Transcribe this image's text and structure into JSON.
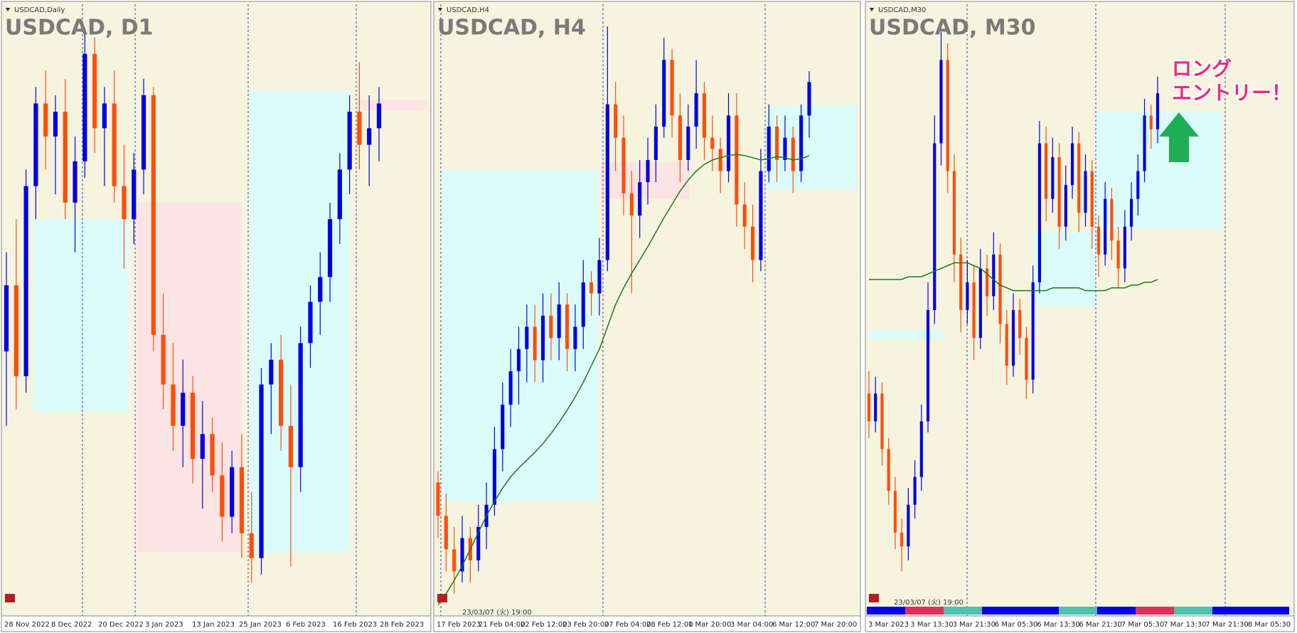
{
  "chart_data": [
    {
      "type": "candlestick",
      "symbol_label": "USDCAD,Daily",
      "title": "USDCAD, D1",
      "up_color": "#0000e6",
      "down_color": "#ff4d0a",
      "ylim": [
        1.318,
        1.392
      ],
      "x_labels": [
        "28 Nov 2022",
        "8 Dec 2022",
        "20 Dec 2022",
        "3 Jan 2023",
        "13 Jan 2023",
        "25 Jan 2023",
        "6 Feb 2023",
        "16 Feb 2023",
        "28 Feb 2023"
      ],
      "ohlc": [
        [
          1.35,
          1.362,
          1.341,
          1.358
        ],
        [
          1.358,
          1.366,
          1.343,
          1.347
        ],
        [
          1.347,
          1.372,
          1.345,
          1.37
        ],
        [
          1.37,
          1.382,
          1.366,
          1.38
        ],
        [
          1.38,
          1.384,
          1.372,
          1.376
        ],
        [
          1.376,
          1.381,
          1.369,
          1.379
        ],
        [
          1.379,
          1.383,
          1.366,
          1.368
        ],
        [
          1.368,
          1.376,
          1.362,
          1.373
        ],
        [
          1.373,
          1.389,
          1.371,
          1.386
        ],
        [
          1.386,
          1.388,
          1.374,
          1.377
        ],
        [
          1.377,
          1.382,
          1.37,
          1.38
        ],
        [
          1.38,
          1.384,
          1.368,
          1.37
        ],
        [
          1.37,
          1.375,
          1.36,
          1.366
        ],
        [
          1.366,
          1.374,
          1.363,
          1.372
        ],
        [
          1.372,
          1.383,
          1.369,
          1.381
        ],
        [
          1.381,
          1.382,
          1.35,
          1.352
        ],
        [
          1.352,
          1.357,
          1.343,
          1.346
        ],
        [
          1.346,
          1.351,
          1.338,
          1.341
        ],
        [
          1.341,
          1.349,
          1.336,
          1.345
        ],
        [
          1.345,
          1.347,
          1.334,
          1.337
        ],
        [
          1.337,
          1.344,
          1.331,
          1.34
        ],
        [
          1.34,
          1.342,
          1.333,
          1.335
        ],
        [
          1.335,
          1.339,
          1.327,
          1.33
        ],
        [
          1.33,
          1.338,
          1.328,
          1.336
        ],
        [
          1.336,
          1.34,
          1.325,
          1.328
        ],
        [
          1.328,
          1.333,
          1.322,
          1.325
        ],
        [
          1.325,
          1.348,
          1.323,
          1.346
        ],
        [
          1.346,
          1.351,
          1.34,
          1.349
        ],
        [
          1.349,
          1.352,
          1.338,
          1.341
        ],
        [
          1.341,
          1.346,
          1.324,
          1.336
        ],
        [
          1.336,
          1.353,
          1.333,
          1.351
        ],
        [
          1.351,
          1.358,
          1.348,
          1.356
        ],
        [
          1.356,
          1.362,
          1.352,
          1.359
        ],
        [
          1.359,
          1.368,
          1.356,
          1.366
        ],
        [
          1.366,
          1.374,
          1.363,
          1.372
        ],
        [
          1.372,
          1.381,
          1.369,
          1.379
        ],
        [
          1.379,
          1.385,
          1.372,
          1.375
        ],
        [
          1.375,
          1.381,
          1.37,
          1.377
        ],
        [
          1.377,
          1.382,
          1.373,
          1.38
        ]
      ]
    },
    {
      "type": "candlestick",
      "symbol_label": "USDCAD,H4",
      "title": "USDCAD, H4",
      "up_color": "#0000e6",
      "down_color": "#ff4d0a",
      "ylim": [
        1.333,
        1.388
      ],
      "cursor_time": "23/03/07 (火) 19:00",
      "x_labels": [
        "17 Feb 2023",
        "21 Feb 04:00",
        "22 Feb 12:00",
        "23 Feb 20:00",
        "27 Feb 04:00",
        "28 Feb 12:00",
        "1 Mar 20:00",
        "3 Mar 04:00",
        "6 Mar 12:00",
        "7 Mar 20:00"
      ],
      "ohlc": [
        [
          1.345,
          1.346,
          1.34,
          1.342
        ],
        [
          1.342,
          1.344,
          1.337,
          1.339
        ],
        [
          1.339,
          1.341,
          1.335,
          1.337
        ],
        [
          1.337,
          1.342,
          1.336,
          1.34
        ],
        [
          1.34,
          1.341,
          1.336,
          1.338
        ],
        [
          1.338,
          1.343,
          1.337,
          1.341
        ],
        [
          1.341,
          1.345,
          1.339,
          1.343
        ],
        [
          1.343,
          1.35,
          1.342,
          1.348
        ],
        [
          1.348,
          1.354,
          1.346,
          1.352
        ],
        [
          1.352,
          1.357,
          1.35,
          1.355
        ],
        [
          1.355,
          1.359,
          1.352,
          1.357
        ],
        [
          1.357,
          1.361,
          1.354,
          1.359
        ],
        [
          1.359,
          1.361,
          1.354,
          1.356
        ],
        [
          1.356,
          1.362,
          1.354,
          1.36
        ],
        [
          1.36,
          1.362,
          1.356,
          1.358
        ],
        [
          1.358,
          1.363,
          1.356,
          1.361
        ],
        [
          1.361,
          1.362,
          1.355,
          1.357
        ],
        [
          1.357,
          1.361,
          1.355,
          1.359
        ],
        [
          1.359,
          1.365,
          1.357,
          1.363
        ],
        [
          1.363,
          1.364,
          1.36,
          1.362
        ],
        [
          1.362,
          1.367,
          1.36,
          1.365
        ],
        [
          1.365,
          1.386,
          1.364,
          1.379
        ],
        [
          1.379,
          1.381,
          1.373,
          1.376
        ],
        [
          1.376,
          1.378,
          1.369,
          1.371
        ],
        [
          1.371,
          1.373,
          1.362,
          1.369
        ],
        [
          1.369,
          1.374,
          1.367,
          1.372
        ],
        [
          1.372,
          1.376,
          1.37,
          1.374
        ],
        [
          1.374,
          1.379,
          1.372,
          1.377
        ],
        [
          1.377,
          1.385,
          1.376,
          1.383
        ],
        [
          1.383,
          1.384,
          1.376,
          1.378
        ],
        [
          1.378,
          1.38,
          1.372,
          1.374
        ],
        [
          1.374,
          1.379,
          1.373,
          1.377
        ],
        [
          1.377,
          1.383,
          1.375,
          1.38
        ],
        [
          1.38,
          1.381,
          1.374,
          1.376
        ],
        [
          1.376,
          1.378,
          1.373,
          1.375
        ],
        [
          1.375,
          1.376,
          1.371,
          1.373
        ],
        [
          1.373,
          1.38,
          1.372,
          1.378
        ],
        [
          1.378,
          1.38,
          1.368,
          1.37
        ],
        [
          1.37,
          1.372,
          1.366,
          1.368
        ],
        [
          1.368,
          1.37,
          1.363,
          1.365
        ],
        [
          1.365,
          1.375,
          1.364,
          1.373
        ],
        [
          1.373,
          1.379,
          1.372,
          1.377
        ],
        [
          1.377,
          1.378,
          1.372,
          1.374
        ],
        [
          1.374,
          1.378,
          1.373,
          1.376
        ],
        [
          1.376,
          1.377,
          1.371,
          1.373
        ],
        [
          1.373,
          1.379,
          1.372,
          1.378
        ],
        [
          1.378,
          1.382,
          1.376,
          1.381
        ]
      ],
      "ma": {
        "color": "#1a7a1a",
        "values": [
          1.334,
          1.335,
          1.3362,
          1.3375,
          1.339,
          1.3405,
          1.342,
          1.3433,
          1.3445,
          1.3455,
          1.3463,
          1.347,
          1.3477,
          1.3485,
          1.3494,
          1.3504,
          1.3515,
          1.3527,
          1.354,
          1.3555,
          1.357,
          1.359,
          1.361,
          1.3625,
          1.3638,
          1.365,
          1.3662,
          1.3675,
          1.3688,
          1.37,
          1.3712,
          1.3722,
          1.373,
          1.3736,
          1.374,
          1.3742,
          1.3744,
          1.3745,
          1.3744,
          1.3742,
          1.374,
          1.3741,
          1.3743,
          1.3742,
          1.374,
          1.3741,
          1.3744
        ]
      }
    },
    {
      "type": "candlestick",
      "symbol_label": "USDCAD,M30",
      "title": "USDCAD, M30",
      "up_color": "#0000e6",
      "down_color": "#ff4d0a",
      "ylim": [
        1.362,
        1.384
      ],
      "cursor_time": "23/03/07 (火) 19:00",
      "annotation": [
        "ロング",
        "エントリー！"
      ],
      "x_labels": [
        "3 Mar 2023",
        "3 Mar 13:30",
        "3 Mar 21:30",
        "6 Mar 05:30",
        "6 Mar 13:30",
        "6 Mar 21:30",
        "7 Mar 05:30",
        "7 Mar 13:30",
        "7 Mar 21:30",
        "8 Mar 05:30"
      ],
      "ohlc": [
        [
          1.37,
          1.3708,
          1.3684,
          1.369
        ],
        [
          1.369,
          1.3706,
          1.3686,
          1.37
        ],
        [
          1.37,
          1.3704,
          1.3674,
          1.368
        ],
        [
          1.368,
          1.3684,
          1.366,
          1.3665
        ],
        [
          1.3665,
          1.367,
          1.3644,
          1.365
        ],
        [
          1.365,
          1.3655,
          1.3636,
          1.3645
        ],
        [
          1.3645,
          1.3666,
          1.364,
          1.366
        ],
        [
          1.366,
          1.3676,
          1.3655,
          1.367
        ],
        [
          1.367,
          1.3696,
          1.3665,
          1.369
        ],
        [
          1.369,
          1.374,
          1.3686,
          1.373
        ],
        [
          1.373,
          1.38,
          1.3725,
          1.379
        ],
        [
          1.379,
          1.383,
          1.3782,
          1.382
        ],
        [
          1.382,
          1.3826,
          1.3772,
          1.378
        ],
        [
          1.378,
          1.3786,
          1.374,
          1.375
        ],
        [
          1.375,
          1.3756,
          1.3722,
          1.373
        ],
        [
          1.373,
          1.3748,
          1.3725,
          1.374
        ],
        [
          1.374,
          1.3746,
          1.3712,
          1.372
        ],
        [
          1.372,
          1.3752,
          1.3716,
          1.3745
        ],
        [
          1.3745,
          1.375,
          1.3728,
          1.3735
        ],
        [
          1.3735,
          1.3758,
          1.373,
          1.375
        ],
        [
          1.375,
          1.3754,
          1.3718,
          1.3725
        ],
        [
          1.3725,
          1.373,
          1.3703,
          1.371
        ],
        [
          1.371,
          1.3736,
          1.3706,
          1.373
        ],
        [
          1.373,
          1.3734,
          1.3714,
          1.372
        ],
        [
          1.372,
          1.3724,
          1.3698,
          1.3705
        ],
        [
          1.3705,
          1.3746,
          1.37,
          1.374
        ],
        [
          1.374,
          1.3798,
          1.3736,
          1.379
        ],
        [
          1.379,
          1.3796,
          1.3762,
          1.377
        ],
        [
          1.377,
          1.3792,
          1.3765,
          1.3785
        ],
        [
          1.3785,
          1.379,
          1.3752,
          1.376
        ],
        [
          1.376,
          1.3782,
          1.3755,
          1.3775
        ],
        [
          1.3775,
          1.3796,
          1.377,
          1.379
        ],
        [
          1.379,
          1.3794,
          1.3758,
          1.3765
        ],
        [
          1.3765,
          1.3786,
          1.376,
          1.378
        ],
        [
          1.378,
          1.3784,
          1.3752,
          1.376
        ],
        [
          1.376,
          1.3764,
          1.3742,
          1.375
        ],
        [
          1.375,
          1.3776,
          1.3746,
          1.377
        ],
        [
          1.377,
          1.3774,
          1.3748,
          1.3755
        ],
        [
          1.3755,
          1.376,
          1.3738,
          1.3745
        ],
        [
          1.3745,
          1.3766,
          1.374,
          1.376
        ],
        [
          1.376,
          1.3776,
          1.3755,
          1.377
        ],
        [
          1.377,
          1.3786,
          1.3764,
          1.378
        ],
        [
          1.378,
          1.3806,
          1.3776,
          1.38
        ],
        [
          1.38,
          1.3804,
          1.3788,
          1.3795
        ],
        [
          1.3795,
          1.3814,
          1.379,
          1.3808
        ]
      ],
      "ma": {
        "color": "#1a7a1a",
        "values": [
          1.3741,
          1.3741,
          1.3741,
          1.3741,
          1.3741,
          1.3741,
          1.3742,
          1.3742,
          1.3742,
          1.3743,
          1.3744,
          1.3745,
          1.3746,
          1.3747,
          1.3747,
          1.3747,
          1.3746,
          1.3745,
          1.3743,
          1.3741,
          1.3739,
          1.3738,
          1.3737,
          1.3737,
          1.3737,
          1.3737,
          1.3737,
          1.3737,
          1.3738,
          1.3738,
          1.3738,
          1.3738,
          1.3738,
          1.3737,
          1.3737,
          1.3737,
          1.3737,
          1.3738,
          1.3738,
          1.3738,
          1.3739,
          1.3739,
          1.374,
          1.374,
          1.3741
        ]
      }
    }
  ]
}
